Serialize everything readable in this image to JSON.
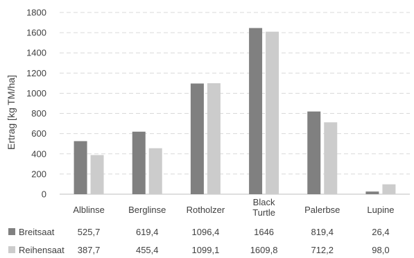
{
  "chart_data": {
    "type": "bar",
    "ylabel": "Ertrag [kg TM/ha]",
    "xlabel": "",
    "ylim": [
      0,
      1800
    ],
    "yticks": [
      "0",
      "200",
      "400",
      "600",
      "800",
      "1000",
      "1200",
      "1400",
      "1600",
      "1800"
    ],
    "grid": true,
    "categories": [
      [
        "Alblinse"
      ],
      [
        "Berglinse"
      ],
      [
        "Rotholzer"
      ],
      [
        "Black",
        "Turtle"
      ],
      [
        "Palerbse"
      ],
      [
        "Lupine"
      ]
    ],
    "series": [
      {
        "name": "Breitsaat",
        "color": "#808080",
        "values": [
          525.7,
          619.4,
          1096.4,
          1646,
          819.4,
          26.4
        ],
        "labels": [
          "525,7",
          "619,4",
          "1096,4",
          "1646",
          "819,4",
          "26,4"
        ]
      },
      {
        "name": "Reihensaat",
        "color": "#cccccc",
        "values": [
          387.7,
          455.4,
          1099.1,
          1609.8,
          712.2,
          98.0
        ],
        "labels": [
          "387,7",
          "455,4",
          "1099,1",
          "1609,8",
          "712,2",
          "98,0"
        ]
      }
    ]
  }
}
